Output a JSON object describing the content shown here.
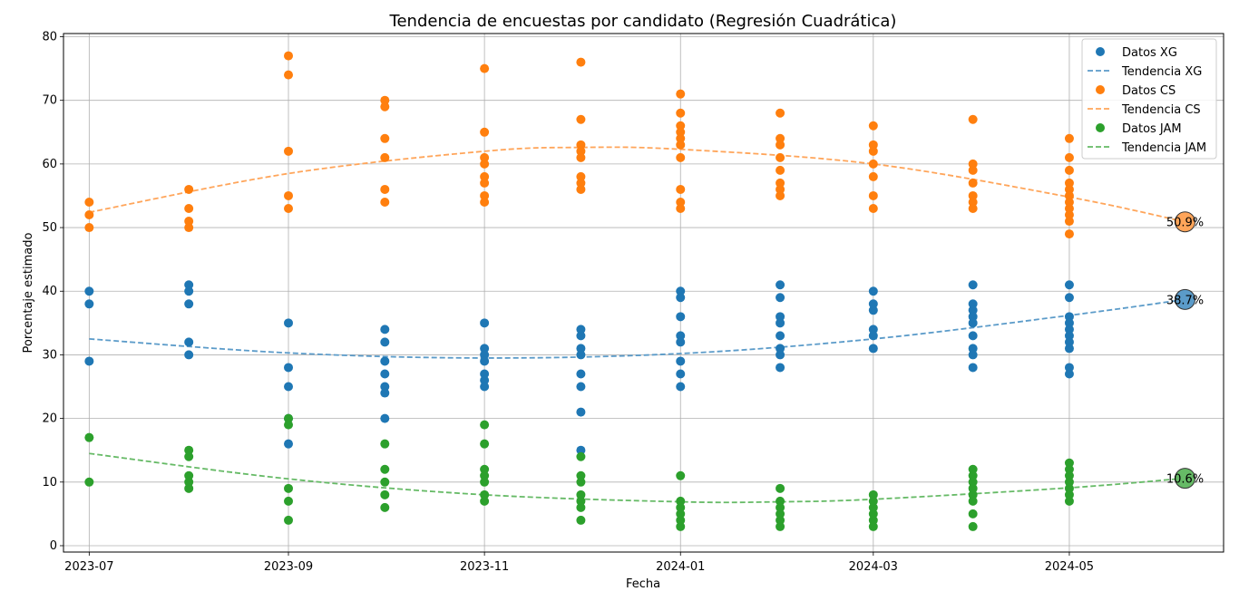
{
  "chart_data": {
    "type": "scatter",
    "title": "Tendencia de encuestas por candidato (Regresión Cuadrática)",
    "xlabel": "Fecha",
    "ylabel": "Porcentaje estimado",
    "xlim": [
      "2023-06-23",
      "2024-06-18"
    ],
    "ylim": [
      -1,
      80.5
    ],
    "grid": true,
    "legend_position": "top-right",
    "x_ticks": [
      "2023-07",
      "2023-09",
      "2023-11",
      "2024-01",
      "2024-03",
      "2024-05"
    ],
    "y_ticks": [
      0,
      10,
      20,
      30,
      40,
      50,
      60,
      70,
      80
    ],
    "x_dates": [
      "2023-07-01",
      "2023-08-01",
      "2023-09-01",
      "2023-10-01",
      "2023-11-01",
      "2023-12-01",
      "2024-01-01",
      "2024-02-01",
      "2024-03-01",
      "2024-04-01",
      "2024-05-01"
    ],
    "series": [
      {
        "name": "Datos XG",
        "trend_name": "Tendencia XG",
        "color": "#1f77b4",
        "trend_color": "#5b9bc9",
        "values": [
          [
            40,
            38,
            29
          ],
          [
            41,
            40,
            38,
            32,
            30
          ],
          [
            35,
            28,
            25,
            20,
            16
          ],
          [
            34,
            32,
            29,
            27,
            25,
            24,
            20
          ],
          [
            35,
            31,
            30,
            29,
            27,
            26,
            25
          ],
          [
            34,
            33,
            31,
            30,
            27,
            25,
            21,
            15
          ],
          [
            40,
            39,
            36,
            33,
            32,
            29,
            27,
            25
          ],
          [
            41,
            39,
            36,
            35,
            33,
            31,
            30,
            28
          ],
          [
            40,
            38,
            37,
            34,
            33,
            31
          ],
          [
            41,
            38,
            37,
            36,
            35,
            33,
            31,
            30,
            28
          ],
          [
            41,
            39,
            36,
            35,
            34,
            33,
            32,
            31,
            28,
            27
          ]
        ],
        "trend": [
          [
            "2023-07-01",
            32.5
          ],
          [
            "2023-09-01",
            30.3
          ],
          [
            "2023-11-01",
            29.5
          ],
          [
            "2024-01-01",
            30.2
          ],
          [
            "2024-03-01",
            32.5
          ],
          [
            "2024-05-01",
            36.2
          ],
          [
            "2024-06-06",
            38.7
          ]
        ],
        "projection": {
          "date": "2024-06-06",
          "value": 38.7,
          "label": "38.7%"
        }
      },
      {
        "name": "Datos CS",
        "trend_name": "Tendencia CS",
        "color": "#ff7f0e",
        "trend_color": "#ffa55a",
        "values": [
          [
            54,
            52,
            50
          ],
          [
            56,
            53,
            51,
            50
          ],
          [
            77,
            74,
            62,
            55,
            53
          ],
          [
            70,
            69,
            64,
            61,
            56,
            54
          ],
          [
            75,
            65,
            61,
            60,
            58,
            57,
            55,
            54
          ],
          [
            76,
            67,
            63,
            62,
            61,
            58,
            57,
            56
          ],
          [
            71,
            68,
            66,
            65,
            64,
            63,
            61,
            56,
            54,
            53
          ],
          [
            68,
            64,
            63,
            61,
            59,
            57,
            56,
            55
          ],
          [
            66,
            63,
            62,
            60,
            58,
            55,
            53
          ],
          [
            67,
            60,
            59,
            57,
            55,
            54,
            53
          ],
          [
            64,
            61,
            59,
            57,
            56,
            55,
            54,
            53,
            52,
            51,
            49
          ]
        ],
        "trend": [
          [
            "2023-07-01",
            52.4
          ],
          [
            "2023-09-01",
            58.5
          ],
          [
            "2023-11-01",
            62.0
          ],
          [
            "2023-12-01",
            62.6
          ],
          [
            "2024-01-01",
            62.3
          ],
          [
            "2024-03-01",
            60.0
          ],
          [
            "2024-05-01",
            54.8
          ],
          [
            "2024-06-06",
            50.9
          ]
        ],
        "projection": {
          "date": "2024-06-06",
          "value": 50.9,
          "label": "50.9%"
        }
      },
      {
        "name": "Datos JAM",
        "trend_name": "Tendencia JAM",
        "color": "#2ca02c",
        "trend_color": "#66ba66",
        "values": [
          [
            17,
            10
          ],
          [
            15,
            14,
            11,
            10,
            9
          ],
          [
            20,
            19,
            9,
            7,
            4
          ],
          [
            16,
            12,
            10,
            8,
            6
          ],
          [
            19,
            16,
            12,
            11,
            10,
            8,
            7
          ],
          [
            14,
            11,
            10,
            8,
            7,
            6,
            4
          ],
          [
            11,
            7,
            6,
            5,
            4,
            3
          ],
          [
            9,
            7,
            6,
            5,
            4,
            3
          ],
          [
            8,
            7,
            6,
            5,
            4,
            3
          ],
          [
            12,
            11,
            10,
            9,
            8,
            7,
            5,
            3
          ],
          [
            13,
            12,
            11,
            10,
            9,
            8,
            7
          ]
        ],
        "trend": [
          [
            "2023-07-01",
            14.5
          ],
          [
            "2023-09-01",
            10.5
          ],
          [
            "2023-11-01",
            8.0
          ],
          [
            "2024-01-01",
            6.9
          ],
          [
            "2024-02-01",
            6.9
          ],
          [
            "2024-03-01",
            7.3
          ],
          [
            "2024-05-01",
            9.1
          ],
          [
            "2024-06-06",
            10.6
          ]
        ],
        "projection": {
          "date": "2024-06-06",
          "value": 10.6,
          "label": "10.6%"
        }
      }
    ]
  }
}
